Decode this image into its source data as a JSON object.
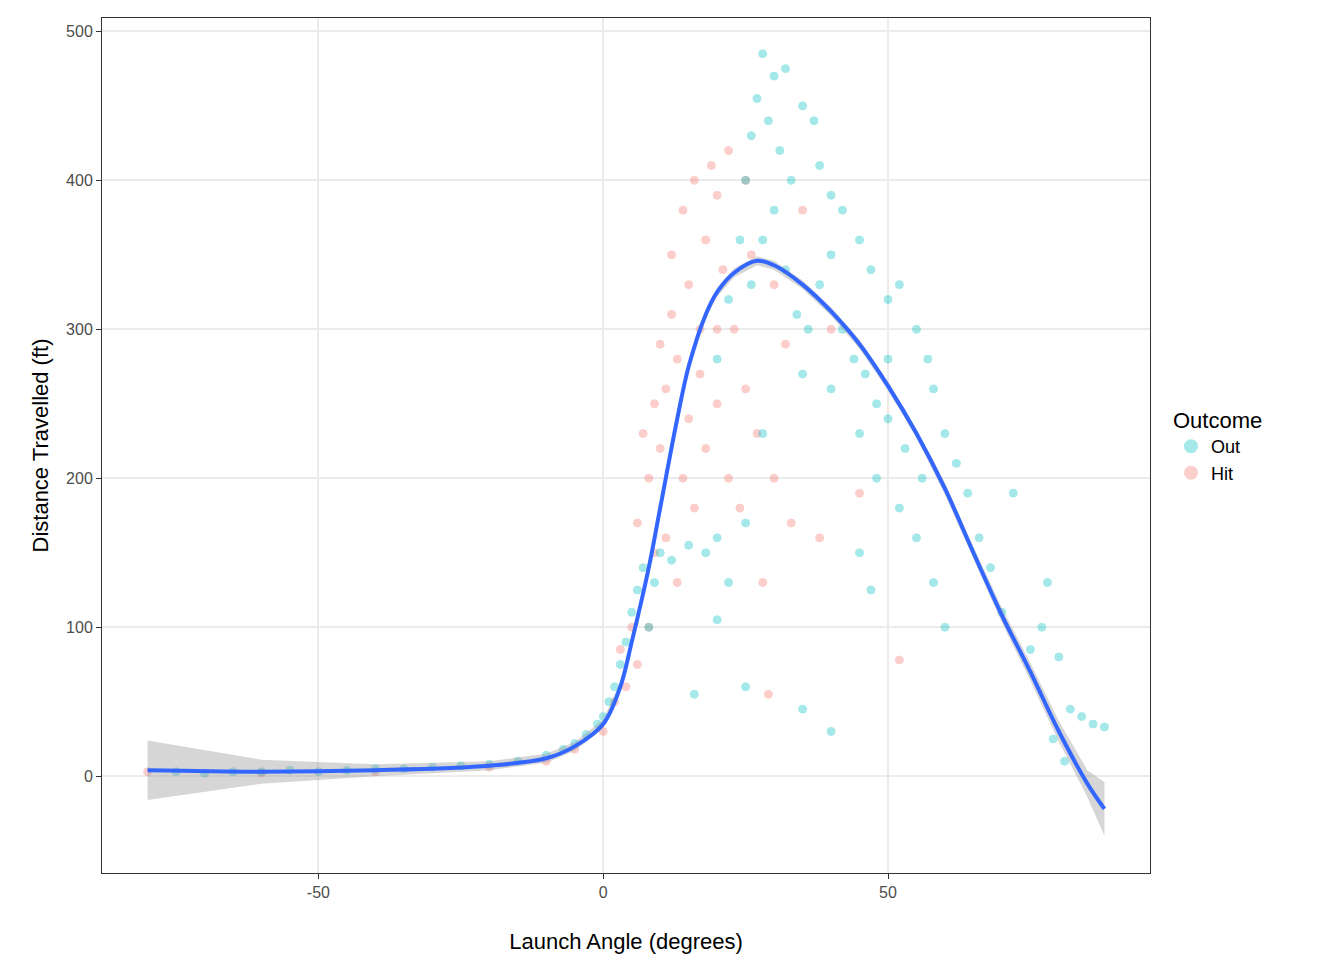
{
  "chart_data": {
    "type": "scatter",
    "x_label": "Launch Angle (degrees)",
    "y_label": "Distance Travelled (ft)",
    "legend_title": "Outcome",
    "legend": "right",
    "grid": true,
    "xlim": [
      -88,
      96
    ],
    "ylim": [
      -65,
      509
    ],
    "xticks": [
      -50,
      0,
      50
    ],
    "yticks": [
      0,
      100,
      200,
      300,
      400,
      500
    ],
    "series": [
      {
        "name": "Hit",
        "color": "#F8766D",
        "marker": "circle",
        "x": [
          -80,
          -60,
          -40,
          -20,
          -10,
          -5,
          0,
          2,
          3,
          5,
          6,
          7,
          8,
          9,
          10,
          10,
          11,
          12,
          12,
          13,
          14,
          15,
          15,
          16,
          17,
          18,
          19,
          20,
          21,
          22,
          23,
          14,
          16,
          18,
          20,
          22,
          24,
          25,
          27,
          30,
          28,
          29,
          33,
          38,
          45,
          52,
          35,
          30,
          25,
          9,
          4,
          6,
          8,
          11,
          13,
          20,
          17,
          26,
          32,
          40
        ],
        "values": [
          3,
          2,
          3,
          6,
          10,
          18,
          30,
          50,
          85,
          100,
          170,
          230,
          200,
          250,
          220,
          290,
          260,
          310,
          350,
          280,
          380,
          330,
          240,
          400,
          300,
          360,
          410,
          390,
          340,
          420,
          300,
          200,
          180,
          220,
          250,
          200,
          180,
          260,
          230,
          200,
          130,
          55,
          170,
          160,
          190,
          78,
          380,
          330,
          400,
          150,
          60,
          75,
          100,
          160,
          130,
          300,
          270,
          350,
          290,
          300
        ]
      },
      {
        "name": "Out",
        "color": "#00BFC4",
        "marker": "circle",
        "x": [
          -75,
          -70,
          -65,
          -60,
          -55,
          -50,
          -45,
          -40,
          -35,
          -30,
          -25,
          -20,
          -15,
          -10,
          -7,
          -5,
          -3,
          -1,
          0,
          1,
          2,
          3,
          4,
          5,
          6,
          7,
          8,
          9,
          10,
          12,
          15,
          18,
          20,
          22,
          25,
          35,
          40,
          16,
          20,
          22,
          24,
          25,
          26,
          27,
          28,
          30,
          32,
          29,
          31,
          33,
          35,
          37,
          38,
          40,
          42,
          45,
          47,
          50,
          52,
          55,
          57,
          58,
          60,
          62,
          64,
          66,
          68,
          70,
          72,
          75,
          77,
          78,
          80,
          82,
          84,
          86,
          88,
          81,
          79,
          30,
          28,
          26,
          32,
          34,
          36,
          38,
          40,
          42,
          44,
          46,
          48,
          50,
          35,
          40,
          45,
          48,
          52,
          55,
          58,
          60,
          45,
          47,
          28,
          25,
          20,
          50,
          53,
          56
        ],
        "values": [
          3,
          2,
          3,
          3,
          4,
          3,
          4,
          5,
          5,
          6,
          7,
          8,
          10,
          14,
          18,
          22,
          28,
          35,
          40,
          50,
          60,
          75,
          90,
          110,
          125,
          140,
          100,
          130,
          150,
          145,
          155,
          150,
          105,
          130,
          60,
          45,
          30,
          55,
          280,
          320,
          360,
          400,
          430,
          455,
          485,
          470,
          475,
          440,
          420,
          400,
          450,
          440,
          410,
          390,
          380,
          360,
          340,
          320,
          330,
          300,
          280,
          260,
          230,
          210,
          190,
          160,
          140,
          110,
          190,
          85,
          100,
          130,
          80,
          45,
          40,
          35,
          33,
          10,
          25,
          380,
          360,
          330,
          340,
          310,
          300,
          330,
          350,
          300,
          280,
          270,
          250,
          240,
          270,
          260,
          230,
          200,
          180,
          160,
          130,
          100,
          150,
          125,
          230,
          170,
          160,
          280,
          220,
          200
        ]
      },
      {
        "type": "line",
        "color": "#3366FF",
        "line_style": "solid",
        "x": [
          -80,
          -60,
          -40,
          -20,
          -10,
          -5,
          0,
          3,
          5,
          8,
          10,
          13,
          15,
          18,
          20,
          23,
          27,
          30,
          35,
          40,
          45,
          50,
          55,
          60,
          65,
          70,
          75,
          80,
          85,
          88
        ],
        "values": [
          4,
          3,
          4,
          7,
          12,
          20,
          35,
          60,
          90,
          140,
          180,
          240,
          275,
          310,
          325,
          338,
          346,
          343,
          330,
          312,
          290,
          262,
          230,
          193,
          150,
          108,
          70,
          30,
          -5,
          -22
        ],
        "band_lower": [
          -16,
          -5,
          0,
          4,
          9,
          17,
          32,
          57,
          87,
          137,
          177,
          237,
          272,
          307,
          322,
          335,
          343,
          340,
          327,
          309,
          287,
          259,
          227,
          189,
          146,
          103,
          64,
          23,
          -14,
          -40
        ],
        "band_upper": [
          24,
          11,
          8,
          10,
          15,
          23,
          38,
          63,
          93,
          143,
          183,
          243,
          278,
          313,
          328,
          341,
          349,
          346,
          333,
          315,
          293,
          265,
          233,
          197,
          154,
          113,
          76,
          37,
          4,
          -4
        ]
      }
    ]
  }
}
